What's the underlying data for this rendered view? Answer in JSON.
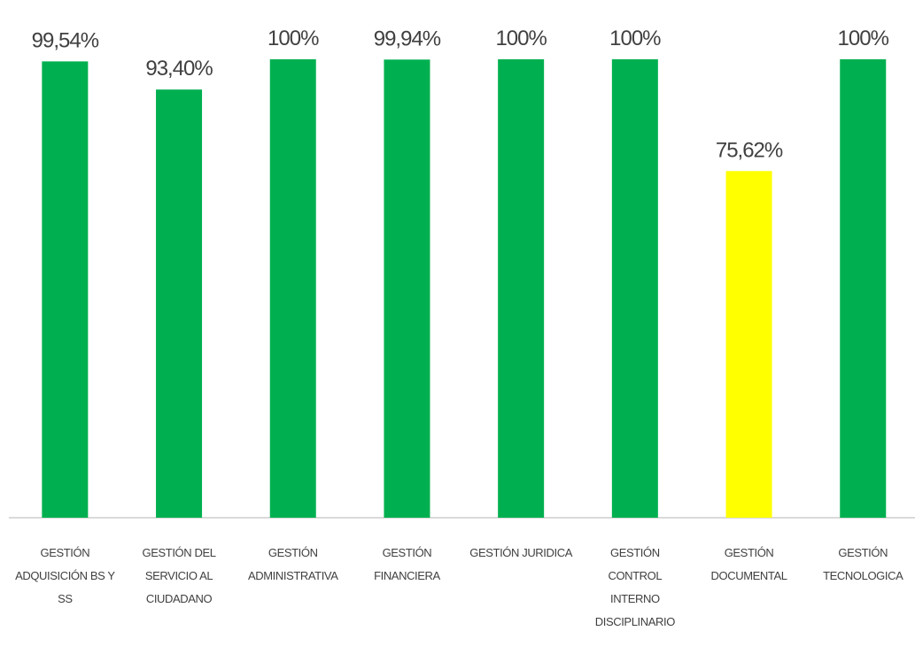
{
  "chart_data": {
    "type": "bar",
    "categories": [
      "GESTIÓN ADQUISICIÓN BS Y SS",
      "GESTIÓN DEL SERVICIO AL CIUDADANO",
      "GESTIÓN ADMINISTRATIVA",
      "GESTIÓN FINANCIERA",
      "GESTIÓN JURIDICA",
      "GESTIÓN CONTROL INTERNO DISCIPLINARIO",
      "GESTIÓN DOCUMENTAL",
      "GESTIÓN TECNOLOGICA"
    ],
    "values": [
      99.54,
      93.4,
      100,
      99.94,
      100,
      100,
      75.62,
      100
    ],
    "value_labels": [
      "99,54%",
      "93,40%",
      "100%",
      "99,94%",
      "100%",
      "100%",
      "75,62%",
      "100%"
    ],
    "colors": [
      "#00b050",
      "#00b050",
      "#00b050",
      "#00b050",
      "#00b050",
      "#00b050",
      "#ffff00",
      "#00b050"
    ],
    "ylim": [
      0,
      100
    ]
  }
}
